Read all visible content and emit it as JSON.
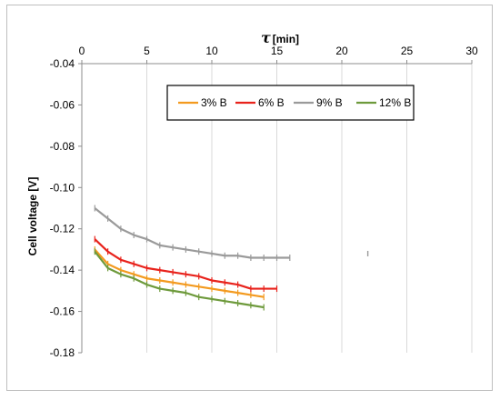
{
  "chart_data": {
    "type": "line",
    "xlabel": "τ [min]",
    "ylabel": "Cell voltage [V]",
    "xlim": [
      0,
      30
    ],
    "ylim": [
      -0.18,
      -0.04
    ],
    "xticks": [
      0,
      5,
      10,
      15,
      20,
      25,
      30
    ],
    "yticks": [
      -0.04,
      -0.06,
      -0.08,
      -0.1,
      -0.12,
      -0.14,
      -0.16,
      -0.18
    ],
    "xtick_labels": [
      "0",
      "5",
      "10",
      "15",
      "20",
      "25",
      "30"
    ],
    "ytick_labels": [
      "-0.04",
      "-0.06",
      "-0.08",
      "-0.10",
      "-0.12",
      "-0.14",
      "-0.16",
      "-0.18"
    ],
    "grid": "vertical",
    "legend_position": "top-center",
    "series": [
      {
        "name": "3% B",
        "color": "#f39a1f",
        "x": [
          1,
          2,
          3,
          4,
          5,
          6,
          7,
          8,
          9,
          10,
          11,
          12,
          13,
          14
        ],
        "y": [
          -0.13,
          -0.137,
          -0.14,
          -0.142,
          -0.144,
          -0.145,
          -0.146,
          -0.147,
          -0.148,
          -0.149,
          -0.15,
          -0.151,
          -0.152,
          -0.153
        ]
      },
      {
        "name": "6% B",
        "color": "#e8231c",
        "x": [
          1,
          2,
          3,
          4,
          5,
          6,
          7,
          8,
          9,
          10,
          11,
          12,
          13,
          14,
          15
        ],
        "y": [
          -0.125,
          -0.131,
          -0.135,
          -0.137,
          -0.139,
          -0.14,
          -0.141,
          -0.142,
          -0.143,
          -0.145,
          -0.146,
          -0.147,
          -0.149,
          -0.149,
          -0.149
        ]
      },
      {
        "name": "9% B",
        "color": "#9a9a9a",
        "x": [
          1,
          2,
          3,
          4,
          5,
          6,
          7,
          8,
          9,
          10,
          11,
          12,
          13,
          14,
          15,
          16
        ],
        "y": [
          -0.11,
          -0.115,
          -0.12,
          -0.123,
          -0.125,
          -0.128,
          -0.129,
          -0.13,
          -0.131,
          -0.132,
          -0.133,
          -0.133,
          -0.134,
          -0.134,
          -0.134,
          -0.134
        ]
      },
      {
        "name": "12% B",
        "color": "#6e9a3c",
        "x": [
          1,
          2,
          3,
          4,
          5,
          6,
          7,
          8,
          9,
          10,
          11,
          12,
          13,
          14
        ],
        "y": [
          -0.131,
          -0.139,
          -0.142,
          -0.144,
          -0.147,
          -0.149,
          -0.15,
          -0.151,
          -0.153,
          -0.154,
          -0.155,
          -0.156,
          -0.157,
          -0.158
        ]
      }
    ],
    "annotations": [
      {
        "type": "error-bar-marker",
        "color": "#9a9a9a",
        "x": 22,
        "y": -0.132
      }
    ]
  }
}
